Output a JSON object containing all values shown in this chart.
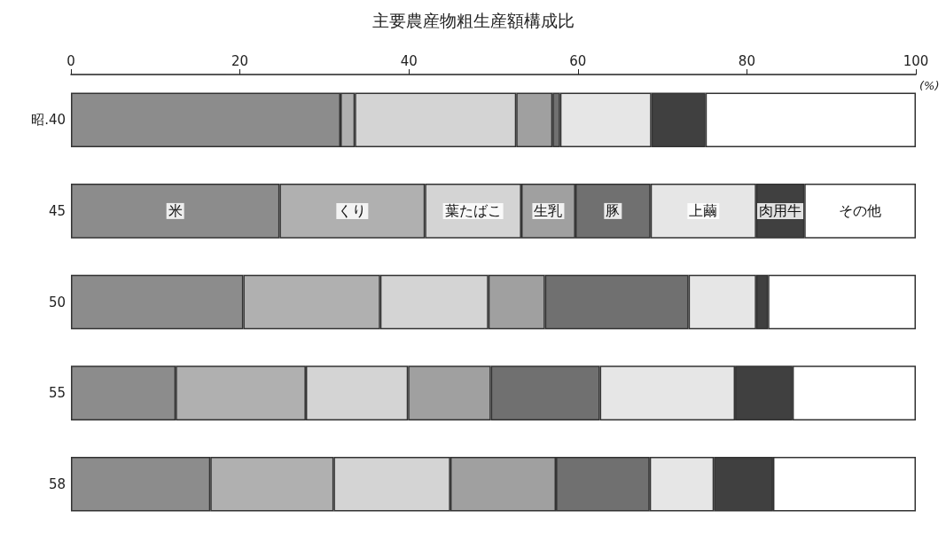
{
  "chart_data": {
    "type": "bar",
    "orientation": "horizontal",
    "stacked": true,
    "title": "主要農産物粗生産額構成比",
    "xlabel": "(%)",
    "categories": [
      "昭.40",
      "45",
      "50",
      "55",
      "58"
    ],
    "xlim": [
      0,
      100
    ],
    "xticks": [
      0,
      20,
      40,
      60,
      80,
      100
    ],
    "grid": false,
    "series": [
      {
        "name": "米",
        "color": "#8c8c8c",
        "values": [
          31.9,
          24.7,
          20.4,
          12.4,
          16.5
        ]
      },
      {
        "name": "くり",
        "color": "#b0b0b0",
        "values": [
          1.7,
          17.2,
          16.2,
          15.4,
          14.6
        ]
      },
      {
        "name": "葉たばこ",
        "color": "#d4d4d4",
        "values": [
          19.1,
          11.4,
          12.8,
          12.1,
          13.8
        ]
      },
      {
        "name": "生乳",
        "color": "#a0a0a0",
        "values": [
          4.3,
          6.4,
          6.7,
          9.8,
          12.5
        ]
      },
      {
        "name": "豚",
        "color": "#707070",
        "values": [
          0.9,
          8.9,
          17.0,
          12.9,
          11.1
        ]
      },
      {
        "name": "上繭",
        "color": "#e6e6e6",
        "values": [
          10.8,
          12.5,
          8.0,
          16.0,
          7.6
        ]
      },
      {
        "name": "肉用牛",
        "color": "#404040",
        "values": [
          6.4,
          5.7,
          1.4,
          6.8,
          7.0
        ]
      },
      {
        "name": "その他",
        "color": "#ffffff",
        "values": [
          24.9,
          13.2,
          17.5,
          14.6,
          16.9
        ]
      }
    ]
  }
}
